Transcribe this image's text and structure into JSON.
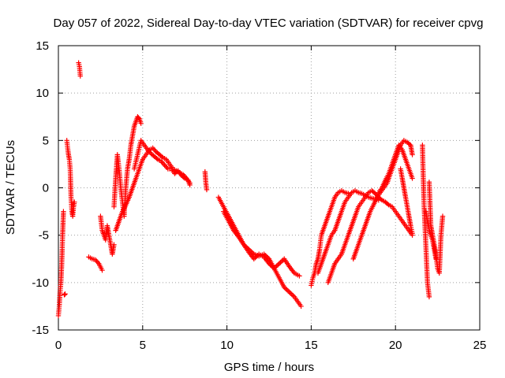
{
  "chart_data": {
    "type": "scatter",
    "title": "Day 057 of 2022, Sidereal Day-to-day VTEC variation (SDTVAR) for receiver cpvg",
    "xlabel": "GPS time / hours",
    "ylabel": "SDTVAR / TECUs",
    "xlim": [
      0,
      25
    ],
    "ylim": [
      -15,
      15
    ],
    "xticks": [
      0,
      5,
      10,
      15,
      20,
      25
    ],
    "yticks": [
      -15,
      -10,
      -5,
      0,
      5,
      10,
      15
    ],
    "grid": true,
    "marker": "+",
    "series_color": "#ff0000",
    "segments": [
      {
        "x": [
          0.0,
          0.05,
          0.1,
          0.15,
          0.2,
          0.25,
          0.3
        ],
        "y": [
          -13.5,
          -12.5,
          -11.0,
          -10.0,
          -8.0,
          -5.0,
          -2.5
        ]
      },
      {
        "x": [
          0.35,
          0.4
        ],
        "y": [
          -11.3,
          -11.2
        ]
      },
      {
        "x": [
          1.2,
          1.25,
          1.3
        ],
        "y": [
          13.2,
          12.8,
          11.8
        ]
      },
      {
        "x": [
          0.5,
          0.55,
          0.6,
          0.65,
          0.7,
          0.75,
          0.8,
          0.85,
          0.9,
          0.95
        ],
        "y": [
          5.0,
          4.2,
          3.5,
          3.0,
          2.0,
          -1.0,
          -2.5,
          -3.0,
          -2.0,
          -1.5
        ]
      },
      {
        "x": [
          1.8,
          2.0,
          2.2,
          2.4,
          2.6
        ],
        "y": [
          -7.3,
          -7.5,
          -7.6,
          -8.0,
          -8.7
        ]
      },
      {
        "x": [
          2.5,
          2.6,
          2.7,
          2.8,
          2.9,
          3.0,
          3.1,
          3.2,
          3.3
        ],
        "y": [
          -3.0,
          -4.5,
          -5.0,
          -5.5,
          -4.0,
          -5.0,
          -6.0,
          -7.0,
          -6.0
        ]
      },
      {
        "x": [
          3.3,
          3.4,
          3.5,
          3.6,
          3.7,
          3.8,
          3.9,
          4.0,
          4.1,
          4.2,
          4.3,
          4.4,
          4.5,
          4.6,
          4.7,
          4.8,
          4.9
        ],
        "y": [
          -2.0,
          1.0,
          3.5,
          2.0,
          0.0,
          -1.5,
          -3.0,
          0.0,
          2.0,
          3.0,
          4.5,
          5.5,
          6.5,
          7.0,
          7.5,
          7.3,
          6.8
        ]
      },
      {
        "x": [
          3.4,
          3.6,
          3.8,
          4.0,
          4.2,
          4.4,
          4.6,
          4.8,
          5.0,
          5.2,
          5.4,
          5.6,
          5.8,
          6.0,
          6.2,
          6.4,
          6.6,
          6.8,
          7.0,
          7.2,
          7.4,
          7.6,
          7.8
        ],
        "y": [
          -4.5,
          -3.5,
          -2.5,
          -1.8,
          -1.0,
          0.0,
          1.0,
          2.0,
          3.0,
          3.5,
          4.0,
          4.2,
          3.8,
          3.5,
          3.2,
          3.0,
          2.5,
          2.0,
          1.8,
          1.6,
          1.4,
          1.0,
          0.5
        ]
      },
      {
        "x": [
          4.5,
          4.7,
          4.9,
          5.1,
          5.3,
          5.5,
          5.7,
          5.9,
          6.1,
          6.3,
          6.5,
          6.7,
          6.9,
          7.1,
          7.3,
          7.5,
          7.7,
          7.8
        ],
        "y": [
          2.0,
          3.5,
          5.0,
          4.5,
          4.0,
          3.6,
          3.3,
          3.0,
          2.8,
          2.4,
          2.0,
          2.0,
          1.5,
          1.8,
          1.3,
          1.0,
          0.8,
          0.3
        ]
      },
      {
        "x": [
          8.7,
          8.75,
          8.8
        ],
        "y": [
          1.7,
          0.5,
          -0.2
        ]
      },
      {
        "x": [
          9.5,
          9.8,
          10.1,
          10.4,
          10.7,
          11.0,
          11.3,
          11.6,
          11.9,
          12.2,
          12.5,
          12.8,
          13.1,
          13.4,
          13.7,
          14.0,
          14.3
        ],
        "y": [
          -1.0,
          -2.0,
          -3.0,
          -4.0,
          -5.0,
          -6.0,
          -6.8,
          -7.5,
          -7.0,
          -7.3,
          -8.0,
          -8.5,
          -8.0,
          -7.5,
          -8.3,
          -9.0,
          -9.3
        ]
      },
      {
        "x": [
          9.8,
          10.1,
          10.4,
          10.7,
          11.0,
          11.3,
          11.6,
          11.9,
          12.2,
          12.5,
          12.8,
          13.1,
          13.4,
          13.7,
          14.0,
          14.2,
          14.4
        ],
        "y": [
          -2.5,
          -3.5,
          -4.5,
          -5.2,
          -6.0,
          -6.5,
          -7.0,
          -7.2,
          -7.0,
          -7.5,
          -8.5,
          -9.5,
          -10.5,
          -11.0,
          -11.5,
          -12.0,
          -12.5
        ]
      },
      {
        "x": [
          15.0,
          15.1,
          15.2,
          15.3,
          15.4,
          15.5,
          15.6,
          15.8,
          16.0,
          16.2,
          16.4,
          16.6,
          16.8,
          17.0,
          17.2
        ],
        "y": [
          -10.3,
          -9.5,
          -9.0,
          -8.0,
          -7.5,
          -6.5,
          -5.0,
          -4.0,
          -3.0,
          -2.0,
          -1.0,
          -0.5,
          -0.3,
          -0.5,
          -0.6
        ]
      },
      {
        "x": [
          15.4,
          15.6,
          15.8,
          16.0,
          16.2,
          16.4,
          16.6,
          16.8,
          17.0,
          17.2,
          17.4,
          17.6,
          17.8,
          18.0,
          18.2,
          18.4,
          18.6,
          18.8,
          19.0
        ],
        "y": [
          -9.0,
          -8.0,
          -7.0,
          -6.0,
          -5.0,
          -4.5,
          -3.5,
          -2.5,
          -1.5,
          -1.0,
          -0.5,
          -0.3,
          -0.5,
          -0.6,
          -0.8,
          -1.0,
          -1.1,
          -1.2,
          -1.3
        ]
      },
      {
        "x": [
          16.0,
          16.2,
          16.4,
          16.6,
          16.8,
          17.0,
          17.2,
          17.4,
          17.6,
          17.8,
          18.0,
          18.2,
          18.4,
          18.6,
          18.8,
          19.0,
          19.2,
          19.4,
          19.6,
          19.8,
          20.0,
          20.2,
          20.4,
          20.6,
          20.8,
          21.0
        ],
        "y": [
          -10.0,
          -9.0,
          -8.0,
          -7.5,
          -7.0,
          -6.0,
          -5.0,
          -4.0,
          -3.0,
          -2.0,
          -1.5,
          -1.0,
          -0.5,
          -0.3,
          -0.6,
          -1.0,
          -1.3,
          -1.5,
          -1.8,
          -2.0,
          -2.5,
          -3.0,
          -3.5,
          -4.0,
          -4.5,
          -5.0
        ]
      },
      {
        "x": [
          17.5,
          17.7,
          17.9,
          18.1,
          18.3,
          18.5,
          18.7,
          18.9,
          19.1,
          19.3,
          19.5,
          19.7,
          19.9,
          20.1,
          20.3,
          20.5,
          20.7,
          20.9,
          21.0
        ],
        "y": [
          -7.5,
          -6.5,
          -5.5,
          -4.5,
          -3.5,
          -2.5,
          -1.8,
          -1.0,
          -0.5,
          0.0,
          0.5,
          1.5,
          2.5,
          3.5,
          4.5,
          5.0,
          4.8,
          4.5,
          3.5
        ]
      },
      {
        "x": [
          19.0,
          19.2,
          19.4,
          19.6,
          19.8,
          20.0,
          20.2,
          20.4,
          20.6,
          20.8,
          21.0
        ],
        "y": [
          -0.5,
          0.0,
          0.8,
          1.5,
          2.5,
          3.5,
          4.5,
          4.0,
          3.0,
          2.0,
          1.0
        ]
      },
      {
        "x": [
          20.3,
          20.4,
          20.5,
          20.6,
          20.7,
          20.8,
          20.9,
          21.0
        ],
        "y": [
          2.0,
          1.0,
          0.0,
          -1.0,
          -2.0,
          -3.0,
          -4.0,
          -4.8
        ]
      },
      {
        "x": [
          21.6,
          21.65,
          21.7,
          21.75,
          21.8,
          21.85,
          21.9,
          22.0
        ],
        "y": [
          4.5,
          1.0,
          -2.0,
          -4.0,
          -6.0,
          -8.0,
          -10.0,
          -11.5
        ]
      },
      {
        "x": [
          22.0,
          22.1,
          22.2,
          22.3,
          22.4,
          22.5,
          22.6,
          22.7,
          22.8
        ],
        "y": [
          0.6,
          -4.0,
          -5.0,
          -6.0,
          -7.0,
          -8.5,
          -9.0,
          -5.0,
          -3.0
        ]
      },
      {
        "x": [
          21.8,
          22.0,
          22.2,
          22.4
        ],
        "y": [
          -2.5,
          -4.5,
          -5.5,
          -7.5
        ]
      }
    ]
  }
}
